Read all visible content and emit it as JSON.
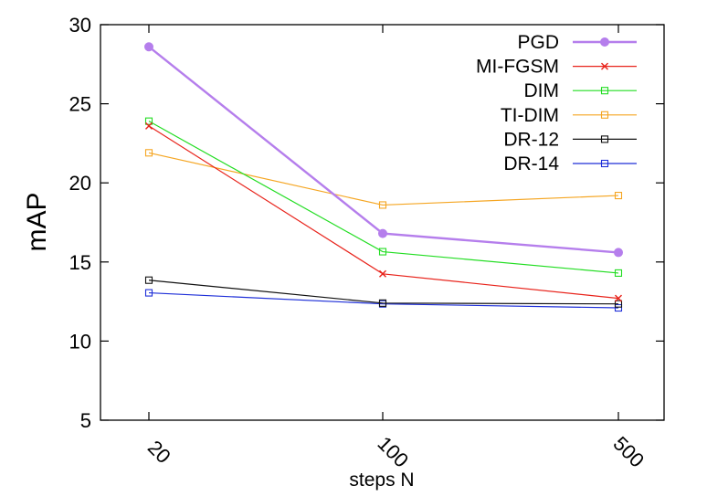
{
  "chart_data": {
    "type": "line",
    "xlabel": "steps N",
    "ylabel": "mAP",
    "categories": [
      "20",
      "100",
      "500"
    ],
    "yticks": [
      "5",
      "10",
      "15",
      "20",
      "25",
      "30"
    ],
    "ylim": [
      5,
      30
    ],
    "grid": false,
    "legend_position": "top-right",
    "series": [
      {
        "name": "PGD",
        "values": [
          28.6,
          16.8,
          15.6
        ],
        "color": "#b57eec",
        "marker": "filled-circle"
      },
      {
        "name": "MI-FGSM",
        "values": [
          23.6,
          14.25,
          12.7
        ],
        "color": "#e8231b",
        "marker": "x"
      },
      {
        "name": "DIM",
        "values": [
          23.9,
          15.65,
          14.3
        ],
        "color": "#22dd22",
        "marker": "open-square"
      },
      {
        "name": "TI-DIM",
        "values": [
          21.9,
          18.6,
          19.2
        ],
        "color": "#f5a623",
        "marker": "open-square"
      },
      {
        "name": "DR-12",
        "values": [
          13.85,
          12.4,
          12.35
        ],
        "color": "#111111",
        "marker": "open-square"
      },
      {
        "name": "DR-14",
        "values": [
          13.05,
          12.35,
          12.1
        ],
        "color": "#1e2fd8",
        "marker": "open-square"
      }
    ]
  }
}
